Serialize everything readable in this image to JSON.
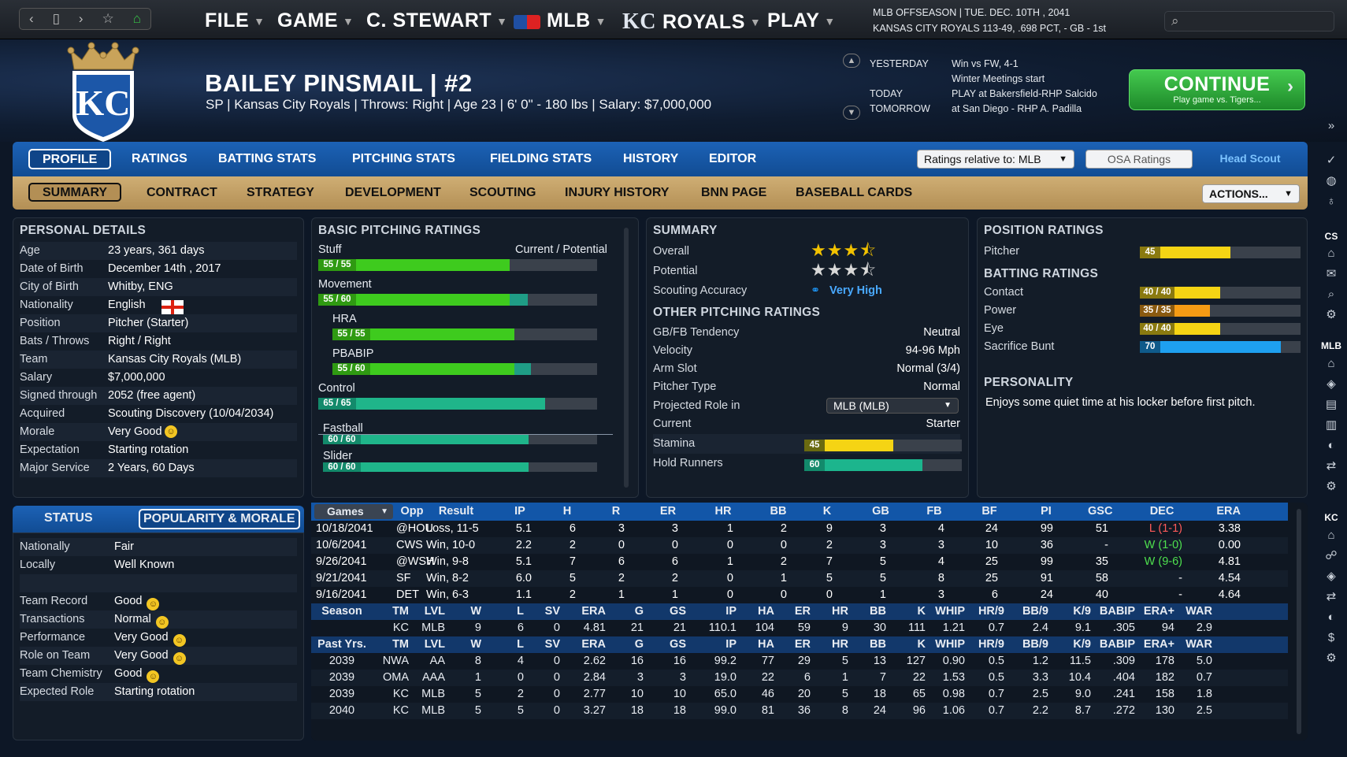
{
  "nav": {
    "back": "‹",
    "doc": "▯",
    "forward": "›",
    "star": "☆",
    "home": "⌂"
  },
  "menu": {
    "file": "FILE",
    "game": "GAME",
    "manager": "C. STEWART",
    "league": "MLB",
    "team_abbr": "KC",
    "team": "ROYALS",
    "play": "PLAY"
  },
  "topinfo": {
    "line1": "MLB OFFSEASON  |  TUE. DEC. 10TH , 2041",
    "line2": "KANSAS CITY ROYALS   113-49, .698 PCT, - GB - 1st"
  },
  "search": {
    "placeholder": ""
  },
  "player": {
    "name": "BAILEY PINSMAIL  |  #2",
    "info": "SP | Kansas City Royals  |  Throws: Right  |  Age 23  |  6' 0\" - 180 lbs  |  Salary: $7,000,000",
    "logo_text": "KC"
  },
  "schedule": {
    "yesterday_label": "YESTERDAY",
    "yesterday": "Win vs FW, 4-1",
    "event": "Winter Meetings start",
    "today_label": "TODAY",
    "today": "PLAY at Bakersfield-RHP Salcido",
    "tomorrow_label": "TOMORROW",
    "tomorrow": "at San Diego - RHP A. Padilla"
  },
  "continue": {
    "label": "CONTINUE",
    "sub": "Play game vs. Tigers...",
    "arrow": "›"
  },
  "tabs1": [
    "PROFILE",
    "RATINGS",
    "BATTING STATS",
    "PITCHING STATS",
    "FIELDING STATS",
    "HISTORY",
    "EDITOR"
  ],
  "ratings_select": "Ratings relative to: MLB",
  "osa_ratings": "OSA Ratings",
  "head_scout": "Head Scout",
  "tabs2": [
    "SUMMARY",
    "CONTRACT",
    "STRATEGY",
    "DEVELOPMENT",
    "SCOUTING",
    "INJURY HISTORY",
    "BNN PAGE",
    "BASEBALL CARDS"
  ],
  "actions": "ACTIONS...",
  "personal": {
    "title": "PERSONAL DETAILS",
    "rows": [
      {
        "k": "Age",
        "v": "23 years, 361 days"
      },
      {
        "k": "Date of Birth",
        "v": "December 14th , 2017"
      },
      {
        "k": "City of Birth",
        "v": "Whitby, ENG"
      },
      {
        "k": "Nationality",
        "v": "English"
      },
      {
        "k": "Position",
        "v": "Pitcher (Starter)"
      },
      {
        "k": "Bats / Throws",
        "v": "Right / Right"
      },
      {
        "k": "Team",
        "v": "Kansas City Royals (MLB)"
      },
      {
        "k": "Salary",
        "v": "$7,000,000"
      },
      {
        "k": "Signed through",
        "v": "2052 (free agent)"
      },
      {
        "k": "Acquired",
        "v": "Scouting Discovery (10/04/2034)"
      },
      {
        "k": "Morale",
        "v": "Very Good"
      },
      {
        "k": "Expectation",
        "v": "Starting rotation"
      },
      {
        "k": "Major Service",
        "v": "2 Years, 60 Days"
      }
    ]
  },
  "pitching": {
    "title": "BASIC PITCHING RATINGS",
    "cur_pot": "Current / Potential",
    "items": [
      {
        "name": "Stuff",
        "label": "55 / 55",
        "cur": 55,
        "pot": 55
      },
      {
        "name": "Movement",
        "label": "55 / 60",
        "cur": 55,
        "pot": 60
      },
      {
        "name": "HRA",
        "label": "55 / 55",
        "cur": 55,
        "pot": 55
      },
      {
        "name": "PBABIP",
        "label": "55 / 60",
        "cur": 55,
        "pot": 60
      },
      {
        "name": "Control",
        "label": "65 / 65",
        "cur": 65,
        "pot": 65
      },
      {
        "name": "Fastball",
        "label": "60 / 60",
        "cur": 60,
        "pot": 60
      },
      {
        "name": "Slider",
        "label": "60 / 60",
        "cur": 60,
        "pot": 60
      }
    ]
  },
  "summary": {
    "title": "SUMMARY",
    "overall_label": "Overall",
    "overall_stars": 3.5,
    "potential_label": "Potential",
    "potential_stars": 3.5,
    "scouting_label": "Scouting Accuracy",
    "scouting_value": "Very High",
    "other_title": "OTHER PITCHING RATINGS",
    "other": [
      {
        "k": "GB/FB Tendency",
        "v": "Neutral"
      },
      {
        "k": "Velocity",
        "v": "94-96 Mph"
      },
      {
        "k": "Arm Slot",
        "v": "Normal (3/4)"
      },
      {
        "k": "Pitcher Type",
        "v": "Normal"
      }
    ],
    "role_label": "Projected Role in",
    "role_select": "MLB (MLB)",
    "current_label": "Current",
    "current_value": "Starter",
    "stamina_label": "Stamina",
    "stamina": 45,
    "hold_label": "Hold Runners",
    "hold": 60
  },
  "position": {
    "title": "POSITION RATINGS",
    "pitcher_label": "Pitcher",
    "pitcher": 45,
    "batting_title": "BATTING RATINGS",
    "batting": [
      {
        "k": "Contact",
        "label": "40 / 40",
        "v": 40,
        "color": "#f5d414"
      },
      {
        "k": "Power",
        "label": "35 / 35",
        "v": 35,
        "color": "#f59b14"
      },
      {
        "k": "Eye",
        "label": "40 / 40",
        "v": 40,
        "color": "#f5d414"
      },
      {
        "k": "Sacrifice Bunt",
        "label": "70",
        "v": 70,
        "color": "#1ea0f0"
      }
    ],
    "personality_title": "PERSONALITY",
    "personality": "Enjoys some quiet time at his locker before first pitch."
  },
  "status": {
    "tab1": "STATUS",
    "tab2": "POPULARITY & MORALE",
    "rows": [
      {
        "k": "Nationally",
        "v": "Fair",
        "smile": false
      },
      {
        "k": "Locally",
        "v": "Well Known",
        "smile": false
      },
      {
        "k": "",
        "v": "",
        "smile": false
      },
      {
        "k": "Team Record",
        "v": "Good",
        "smile": true
      },
      {
        "k": "Transactions",
        "v": "Normal",
        "smile": true
      },
      {
        "k": "Performance",
        "v": "Very Good",
        "smile": true
      },
      {
        "k": "Role on Team",
        "v": "Very Good",
        "smile": true
      },
      {
        "k": "Team Chemistry",
        "v": "Good",
        "smile": true
      },
      {
        "k": "Expected Role",
        "v": "Starting rotation",
        "smile": false
      }
    ]
  },
  "games": {
    "select": "Games",
    "headers": [
      "Opp",
      "Result",
      "IP",
      "H",
      "R",
      "ER",
      "HR",
      "BB",
      "K",
      "GB",
      "FB",
      "BF",
      "PI",
      "GSC",
      "DEC",
      "ERA"
    ],
    "rows": [
      [
        "10/18/2041",
        "@HOU",
        "Loss, 11-5",
        "5.1",
        "6",
        "3",
        "3",
        "1",
        "2",
        "9",
        "3",
        "4",
        "24",
        "99",
        "51",
        "L (1-1)",
        "3.38"
      ],
      [
        "10/6/2041",
        "CWS",
        "Win, 10-0",
        "2.2",
        "2",
        "0",
        "0",
        "0",
        "0",
        "2",
        "3",
        "3",
        "10",
        "36",
        "-",
        "W (1-0)",
        "0.00"
      ],
      [
        "9/26/2041",
        "@WSH",
        "Win, 9-8",
        "5.1",
        "7",
        "6",
        "6",
        "1",
        "2",
        "7",
        "5",
        "4",
        "25",
        "99",
        "35",
        "W (9-6)",
        "4.81"
      ],
      [
        "9/21/2041",
        "SF",
        "Win, 8-2",
        "6.0",
        "5",
        "2",
        "2",
        "0",
        "1",
        "5",
        "5",
        "8",
        "25",
        "91",
        "58",
        "-",
        "4.54"
      ],
      [
        "9/16/2041",
        "DET",
        "Win, 6-3",
        "1.1",
        "2",
        "1",
        "1",
        "0",
        "0",
        "0",
        "1",
        "3",
        "6",
        "24",
        "40",
        "-",
        "4.64"
      ]
    ]
  },
  "season": {
    "headers": [
      "Season",
      "TM",
      "LVL",
      "W",
      "L",
      "SV",
      "ERA",
      "G",
      "GS",
      "IP",
      "HA",
      "ER",
      "HR",
      "BB",
      "K",
      "WHIP",
      "HR/9",
      "BB/9",
      "K/9",
      "BABIP",
      "ERA+",
      "WAR"
    ],
    "row": [
      "",
      "KC",
      "MLB",
      "9",
      "6",
      "0",
      "4.81",
      "21",
      "21",
      "110.1",
      "104",
      "59",
      "9",
      "30",
      "111",
      "1.21",
      "0.7",
      "2.4",
      "9.1",
      ".305",
      "94",
      "2.9"
    ]
  },
  "past": {
    "headers": [
      "Past Yrs.",
      "TM",
      "LVL",
      "W",
      "L",
      "SV",
      "ERA",
      "G",
      "GS",
      "IP",
      "HA",
      "ER",
      "HR",
      "BB",
      "K",
      "WHIP",
      "HR/9",
      "BB/9",
      "K/9",
      "BABIP",
      "ERA+",
      "WAR"
    ],
    "rows": [
      [
        "2039",
        "NWA",
        "AA",
        "8",
        "4",
        "0",
        "2.62",
        "16",
        "16",
        "99.2",
        "77",
        "29",
        "5",
        "13",
        "127",
        "0.90",
        "0.5",
        "1.2",
        "11.5",
        ".309",
        "178",
        "5.0"
      ],
      [
        "2039",
        "OMA",
        "AAA",
        "1",
        "0",
        "0",
        "2.84",
        "3",
        "3",
        "19.0",
        "22",
        "6",
        "1",
        "7",
        "22",
        "1.53",
        "0.5",
        "3.3",
        "10.4",
        ".404",
        "182",
        "0.7"
      ],
      [
        "2039",
        "KC",
        "MLB",
        "5",
        "2",
        "0",
        "2.77",
        "10",
        "10",
        "65.0",
        "46",
        "20",
        "5",
        "18",
        "65",
        "0.98",
        "0.7",
        "2.5",
        "9.0",
        ".241",
        "158",
        "1.8"
      ],
      [
        "2040",
        "KC",
        "MLB",
        "5",
        "5",
        "0",
        "3.27",
        "18",
        "18",
        "99.0",
        "81",
        "36",
        "8",
        "24",
        "96",
        "1.06",
        "0.7",
        "2.2",
        "8.7",
        ".272",
        "130",
        "2.5"
      ]
    ]
  },
  "sidebar": {
    "cs": "CS",
    "mlb": "MLB",
    "kc": "KC"
  }
}
